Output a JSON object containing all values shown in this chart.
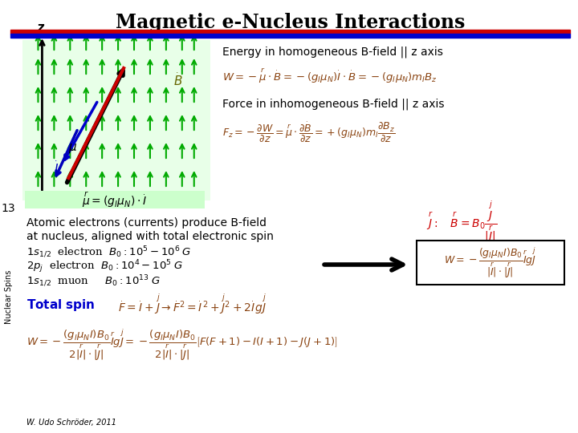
{
  "title": "Magnetic e-Nucleus Interactions",
  "title_underline_color1": "#cc0000",
  "title_underline_color2": "#0000cc",
  "bg_color": "#ffffff",
  "slide_num": "13",
  "side_label": "Nuclear Spins",
  "footer": "W. Udo Schröder, 2011",
  "energy_label": "Energy in homogeneous B-field || z axis",
  "force_label": "Force in inhomogeneous B-field || z axis",
  "eq_W": "$W = -\\overset{r}{\\mu} \\cdot \\overset{\\cdot}{B} = -(g_I\\mu_N)\\overset{\\cdot}{I} \\cdot \\overset{\\cdot}{B} = -(g_I\\mu_N)m_I B_z$",
  "eq_Fz": "$F_z = -\\dfrac{\\partial W}{\\partial z} = \\overset{r}{\\mu} \\cdot \\dfrac{\\partial \\overset{\\cdot}{B}}{\\partial z} = +(g_I\\mu_N)m_I \\dfrac{\\partial B_z}{\\partial z}$",
  "atomic_text1": "Atomic electrons (currents) produce B-field",
  "atomic_text2": "at nucleus, aligned with total electronic spin",
  "line1": "$1s_{1/2}\\;$ electron $\\;B_0 : 10^5 - 10^6 \\;G$",
  "line2": "$2p_j\\;$ electron $\\;B_0 : 10^4 - 10^5 \\;G$",
  "line3": "$1s_{1/2}\\;$ muon $\\quad B_0 : 10^{13}\\;G$",
  "eq_J": "$\\overset{r}{J}:\\quad \\overset{r}{B} = B_0 \\dfrac{\\overset{j}{J}}{\\overset{r}{|J|}}$",
  "eq_W2": "$W = -\\dfrac{(g_I\\mu_N I) B_0}{|\\overset{r}{I}| \\cdot |\\overset{r}{J}|}\\; \\overset{r}{I} g \\overset{j}{J}$",
  "total_spin_label": "Total spin",
  "eq_F": "$\\overset{\\cdot}{F} = \\overset{\\cdot}{I} + \\overset{j}{J} \\rightarrow \\overset{\\cdot}{F}^2 = \\overset{\\cdot}{I}^2 + \\overset{j}{J}^2 + 2\\overset{\\cdot}{I}g\\overset{j}{J}$",
  "eq_W3": "$W = -\\dfrac{(g_I\\mu_N I)B_0}{2|\\overset{r}{I}|\\cdot|\\overset{r}{J}|}\\overset{r}{I}g\\overset{j}{J} = -\\dfrac{(g_I\\mu_N I)B_0}{2|\\overset{r}{I}|\\cdot|\\overset{r}{J}|}\\left[F(F+1) - I(I+1) - J(J+1)\\right]$",
  "green_color": "#00aa00",
  "red_color": "#cc0000",
  "blue_color": "#0000cc",
  "black_color": "#000000",
  "formula_color": "#8B4513",
  "light_green_bg": "#ccffcc"
}
